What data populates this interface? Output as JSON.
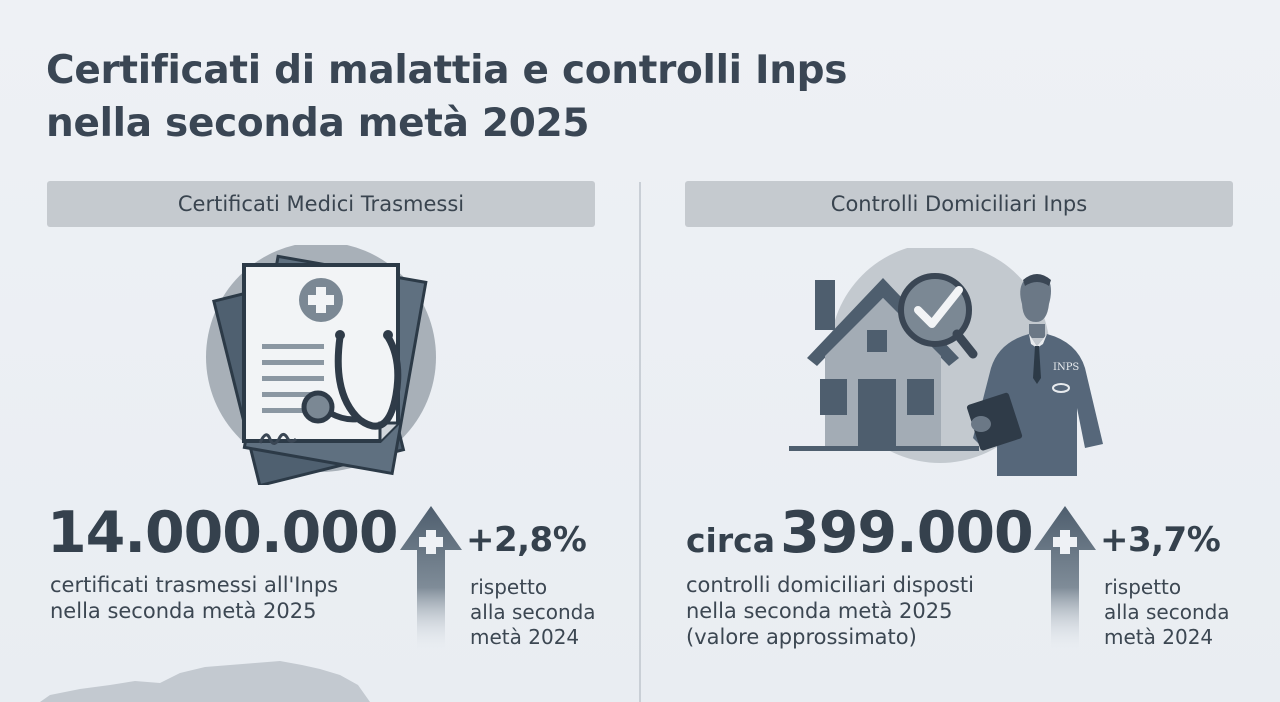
{
  "title": {
    "line1": "Certificati di malattia e controlli Inps",
    "line2": "nella seconda metà 2025"
  },
  "left_panel": {
    "header": "Certificati Medici Trasmessi",
    "number": "14.000.000",
    "description": [
      "certificati trasmessi all'Inps",
      "nella seconda metà 2025"
    ],
    "change": "+2,8%",
    "change_label": [
      "rispetto",
      "alla seconda",
      "metà 2024"
    ],
    "icon": "medical-certificate-stethoscope-icon"
  },
  "right_panel": {
    "header": "Controlli Domiciliari Inps",
    "number_prefix": "circa",
    "number": "399.000",
    "description": [
      "controlli domiciliari disposti",
      "nella seconda metà 2025",
      "(valore approssimato)"
    ],
    "change": "+3,7%",
    "change_label": [
      "rispetto",
      "alla seconda",
      "metà 2024"
    ],
    "icon": "house-inspector-check-icon",
    "badge_text": "INPS"
  },
  "colors": {
    "background": "#eef1f5",
    "header_bg": "#c5cacf",
    "dark_slate": "#4e5e6e",
    "text": "#35414d"
  }
}
